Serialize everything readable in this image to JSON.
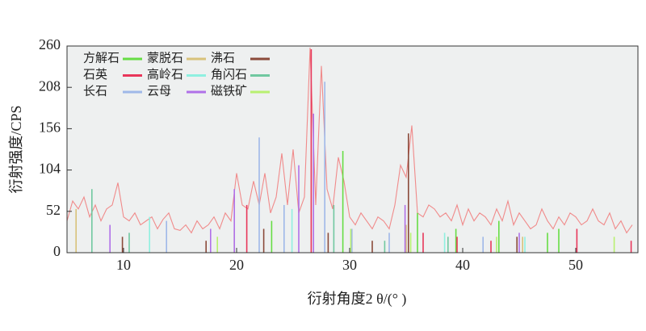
{
  "chart_data": {
    "type": "line",
    "xlabel": "衍射角度2 θ/(° )",
    "ylabel": "衍射强度/CPS",
    "xlim": [
      5,
      55.5
    ],
    "ylim": [
      0,
      260
    ],
    "xticks": [
      10,
      20,
      30,
      40,
      50
    ],
    "yticks": [
      0,
      52,
      104,
      156,
      208,
      260
    ],
    "background": "#eef0f0",
    "series": [
      {
        "style": "line",
        "color": "#f08a8a",
        "x": [
          5,
          5.5,
          6,
          6.5,
          7,
          7.5,
          8,
          8.5,
          9,
          9.5,
          10,
          10.5,
          11,
          11.5,
          12,
          12.5,
          13,
          13.5,
          14,
          14.5,
          15,
          15.5,
          16,
          16.5,
          17,
          17.5,
          18,
          18.5,
          19,
          19.5,
          20,
          20.5,
          21,
          21.5,
          22,
          22.5,
          23,
          23.5,
          24,
          24.5,
          25,
          25.5,
          26,
          26.5,
          27,
          27.5,
          28,
          28.5,
          29,
          29.5,
          30,
          30.5,
          31,
          31.5,
          32,
          32.5,
          33,
          33.5,
          34,
          34.5,
          35,
          35.5,
          36,
          36.5,
          37,
          37.5,
          38,
          38.5,
          39,
          39.5,
          40,
          40.5,
          41,
          41.5,
          42,
          42.5,
          43,
          43.5,
          44,
          44.5,
          45,
          45.5,
          46,
          46.5,
          47,
          47.5,
          48,
          48.5,
          49,
          49.5,
          50,
          50.5,
          51,
          51.5,
          52,
          52.5,
          53,
          53.5,
          54,
          54.5,
          55
        ],
        "values": [
          40,
          65,
          55,
          70,
          45,
          60,
          40,
          55,
          60,
          88,
          45,
          40,
          50,
          35,
          40,
          45,
          30,
          42,
          50,
          30,
          28,
          35,
          25,
          40,
          30,
          35,
          45,
          30,
          50,
          40,
          100,
          60,
          55,
          90,
          60,
          100,
          50,
          70,
          125,
          60,
          130,
          50,
          70,
          258,
          60,
          235,
          80,
          55,
          120,
          90,
          45,
          35,
          50,
          40,
          30,
          45,
          40,
          30,
          60,
          110,
          95,
          160,
          50,
          45,
          60,
          55,
          45,
          50,
          40,
          60,
          35,
          55,
          40,
          50,
          45,
          35,
          55,
          40,
          65,
          35,
          50,
          40,
          30,
          35,
          55,
          40,
          30,
          45,
          35,
          50,
          45,
          35,
          40,
          55,
          40,
          35,
          50,
          30,
          40,
          25,
          35
        ]
      },
      {
        "style": "stick",
        "name": "方解石",
        "color": "#66dd44",
        "x": [
          23.1,
          29.4,
          36.0,
          39.4,
          43.2,
          47.5,
          48.5
        ],
        "values": [
          40,
          128,
          50,
          30,
          40,
          25,
          30
        ]
      },
      {
        "style": "stick",
        "name": "石英",
        "color": "#e8365a",
        "x": [
          20.9,
          26.6,
          36.5,
          39.5,
          42.5,
          50.1,
          54.9
        ],
        "values": [
          60,
          256,
          25,
          20,
          15,
          30,
          15
        ]
      },
      {
        "style": "stick",
        "name": "长石",
        "color": "#9fb8e8",
        "x": [
          13.8,
          22.0,
          24.2,
          27.8,
          30.2,
          33.5,
          41.8
        ],
        "values": [
          40,
          145,
          60,
          215,
          30,
          25,
          20
        ]
      },
      {
        "style": "stick",
        "name": "蒙脱石",
        "color": "#d8c27a",
        "x": [
          5.8,
          19.8,
          35.0,
          45.3
        ],
        "values": [
          55,
          30,
          35,
          20
        ]
      },
      {
        "style": "stick",
        "name": "高岭石",
        "color": "#8ff0e0",
        "x": [
          12.3,
          24.9,
          38.4,
          45.5
        ],
        "values": [
          45,
          55,
          25,
          20
        ]
      },
      {
        "style": "stick",
        "name": "云母",
        "color": "#b070e8",
        "x": [
          8.8,
          17.7,
          19.8,
          25.5,
          26.8,
          34.9,
          45.0
        ],
        "values": [
          35,
          30,
          80,
          110,
          175,
          60,
          25
        ]
      },
      {
        "style": "stick",
        "name": "沸石",
        "color": "#8b4a3a",
        "x": [
          9.9,
          17.3,
          22.4,
          28.1,
          32.0,
          35.2,
          44.8
        ],
        "values": [
          20,
          15,
          30,
          25,
          15,
          150,
          20
        ]
      },
      {
        "style": "stick",
        "name": "角闪石",
        "color": "#70c8a0",
        "x": [
          7.2,
          10.5,
          28.6,
          33.1,
          38.7
        ],
        "values": [
          80,
          25,
          60,
          15,
          20
        ]
      },
      {
        "style": "stick",
        "name": "磁铁矿",
        "color": "#b8f070",
        "x": [
          18.3,
          30.1,
          35.4,
          43.0,
          53.4
        ],
        "values": [
          20,
          30,
          25,
          20,
          20
        ]
      }
    ]
  }
}
